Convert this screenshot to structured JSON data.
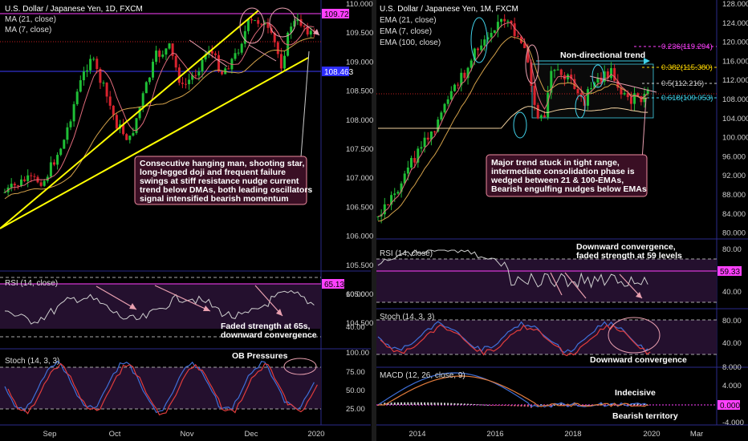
{
  "colors": {
    "background": "#000000",
    "text": "#e6e6e6",
    "bull": "#1fbf36",
    "bear": "#d9232e",
    "trendline": "#ffff00",
    "resistance": "#ff40ff",
    "support": "#3b3bff",
    "ma21": "#d4a24a",
    "ma7": "#e06a7a",
    "ema100": "#f2d2a0",
    "osc_blue": "#3f6fd8",
    "osc_red": "#e03c3c",
    "osc_fill": "#24102e",
    "arrow": "#e9a0b0",
    "cyan": "#40d0e8",
    "annotation_bg": "#3a0f24",
    "annotation_border": "#f08ca0",
    "label_bg_magenta": "#ff40ff",
    "label_bg_blue": "#2e2eff"
  },
  "left_panel": {
    "title": "U.S. Dollar / Japanese Yen, 1D, FXCM",
    "legend": [
      "MA (21, close)",
      "MA (7, close)"
    ],
    "price_ticks": [
      "110.000",
      "109.500",
      "109.000",
      "108.500",
      "108.000",
      "107.500",
      "107.000",
      "106.500",
      "106.000",
      "105.500",
      "105.000",
      "104.500"
    ],
    "price_tags": {
      "resistance": "109.723",
      "support": "108.463"
    },
    "annotation": [
      "Consecutive hanging man, shooting star,",
      "long-legged doji and frequent failure",
      "swings at stiff resistance nudge current",
      "trend below DMAs, both leading oscillators",
      "signal intensified bearish momentum"
    ],
    "rsi_label": "RSI (14, close)",
    "rsi_ticks": [
      "60.00",
      "40.00"
    ],
    "rsi_tag": "65.13",
    "rsi_note": [
      "Faded strength at 65s,",
      "downward convergence"
    ],
    "stoch_label": "Stoch (14, 3, 3)",
    "stoch_ticks": [
      "100.00",
      "75.00",
      "50.00",
      "25.00"
    ],
    "stoch_note": "OB Pressures",
    "x_ticks": [
      "Sep",
      "Oct",
      "Nov",
      "Dec",
      "2020"
    ]
  },
  "right_panel": {
    "title": "U.S. Dollar / Japanese Yen, 1M, FXCM",
    "legend": [
      "EMA (21, close)",
      "EMA (7, close)",
      "EMA (100, close)"
    ],
    "price_ticks": [
      "128.000",
      "124.000",
      "120.000",
      "116.000",
      "112.000",
      "108.000",
      "104.000",
      "100.000",
      "96.000",
      "92.000",
      "88.000",
      "84.000",
      "80.000"
    ],
    "fib_levels": [
      "0.236(119.294)",
      "0.382(115.380)",
      "0.5(112.216)",
      "0.618(109.053)"
    ],
    "range_label": "Non-directional trend",
    "annotation": [
      "Major trend stuck in tight range,",
      "intermediate consolidation phase is",
      "wedged between 21 & 100-EMAs,",
      "Bearish engulfing nudges below EMAs"
    ],
    "rsi_label": "RSI (14, close)",
    "rsi_ticks": [
      "80.00",
      "40.00"
    ],
    "rsi_tag": "59.33",
    "rsi_note": [
      "Downward convergence,",
      "faded strength at 59 levels"
    ],
    "stoch_label": "Stoch (14, 3, 3)",
    "stoch_ticks": [
      "80.00",
      "40.00"
    ],
    "stoch_note": "Downward convergence",
    "macd_label": "MACD (12, 26, close, 9)",
    "macd_ticks": [
      "8.000",
      "4.000",
      "0.000",
      "-4.000"
    ],
    "macd_tag": "0.000",
    "macd_notes": [
      "Indecisive",
      "Bearish territory"
    ],
    "x_ticks": [
      "2014",
      "2016",
      "2018",
      "2020",
      "Mar"
    ]
  }
}
